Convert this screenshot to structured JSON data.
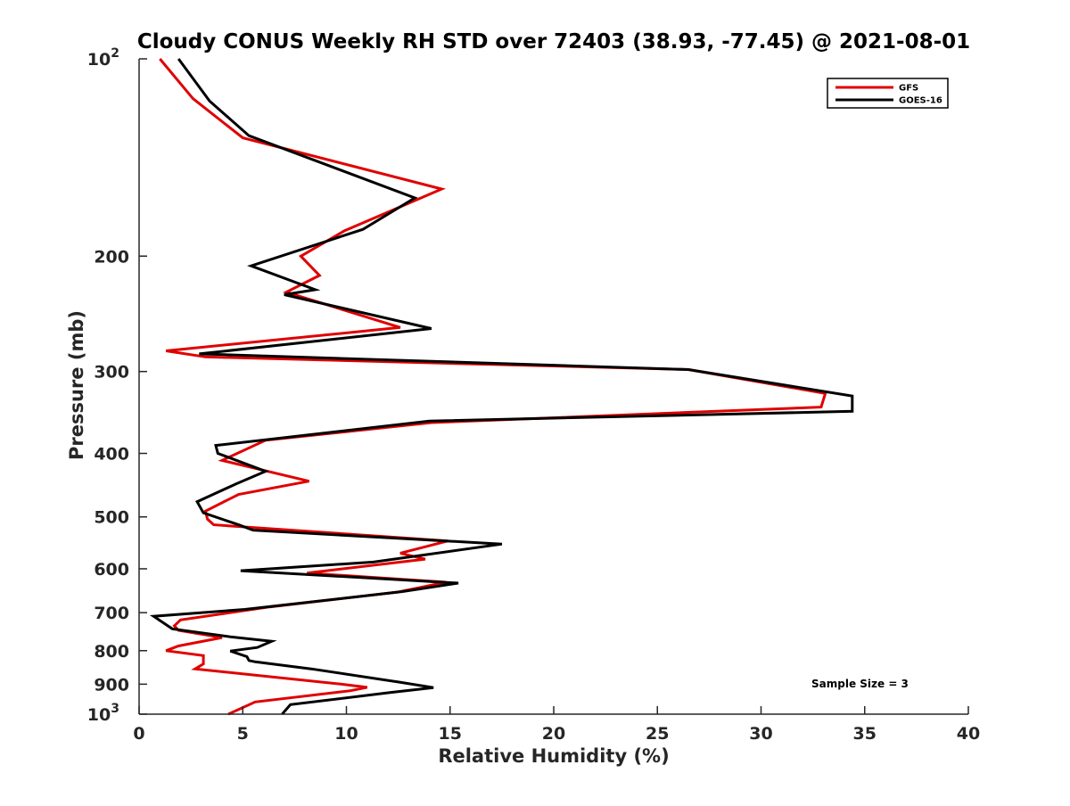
{
  "chart_data": {
    "type": "line",
    "title": "Cloudy CONUS Weekly RH STD over 72403 (38.93, -77.45) @ 2021-08-01",
    "xlabel": "Relative Humidity (%)",
    "ylabel": "Pressure (mb)",
    "xlim": [
      0,
      40
    ],
    "ylim": [
      100,
      1000
    ],
    "yscale": "log",
    "y_reversed": true,
    "grid": false,
    "x_ticks": [
      "0",
      "5",
      "10",
      "15",
      "20",
      "25",
      "30",
      "35",
      "40"
    ],
    "y_ticks": [
      {
        "value": 100,
        "base": "10",
        "exp": "2"
      },
      {
        "value": 200,
        "label": "200"
      },
      {
        "value": 300,
        "label": "300"
      },
      {
        "value": 400,
        "label": "400"
      },
      {
        "value": 500,
        "label": "500"
      },
      {
        "value": 600,
        "label": "600"
      },
      {
        "value": 700,
        "label": "700"
      },
      {
        "value": 800,
        "label": "800"
      },
      {
        "value": 900,
        "label": "900"
      },
      {
        "value": 1000,
        "base": "10",
        "exp": "3"
      }
    ],
    "legend_position": "top-right",
    "series": [
      {
        "name": "GFS",
        "color": "#e00000",
        "points": [
          [
            1.0,
            100
          ],
          [
            2.6,
            115
          ],
          [
            5.0,
            132
          ],
          [
            14.6,
            158
          ],
          [
            9.9,
            183
          ],
          [
            7.8,
            200
          ],
          [
            8.7,
            214
          ],
          [
            7.1,
            227
          ],
          [
            12.6,
            257
          ],
          [
            1.3,
            279
          ],
          [
            3.2,
            285
          ],
          [
            26.5,
            298
          ],
          [
            33.1,
            324
          ],
          [
            32.9,
            340
          ],
          [
            14.1,
            359
          ],
          [
            6.1,
            382
          ],
          [
            4.0,
            410
          ],
          [
            8.2,
            441
          ],
          [
            4.8,
            462
          ],
          [
            3.2,
            490
          ],
          [
            3.3,
            504
          ],
          [
            3.6,
            514
          ],
          [
            14.9,
            544
          ],
          [
            12.6,
            568
          ],
          [
            13.8,
            580
          ],
          [
            8.1,
            609
          ],
          [
            14.8,
            629
          ],
          [
            12.5,
            651
          ],
          [
            6.3,
            686
          ],
          [
            2.0,
            718
          ],
          [
            1.7,
            733
          ],
          [
            1.9,
            745
          ],
          [
            4.0,
            764
          ],
          [
            1.9,
            787
          ],
          [
            1.3,
            800
          ],
          [
            3.1,
            814
          ],
          [
            3.1,
            838
          ],
          [
            2.7,
            853
          ],
          [
            9.9,
            901
          ],
          [
            11.0,
            910
          ],
          [
            10.2,
            921
          ],
          [
            5.6,
            958
          ],
          [
            4.3,
            1000
          ]
        ]
      },
      {
        "name": "GOES-16",
        "color": "#000000",
        "points": [
          [
            1.9,
            100
          ],
          [
            3.4,
            116
          ],
          [
            5.3,
            131
          ],
          [
            13.3,
            163
          ],
          [
            10.8,
            182
          ],
          [
            5.4,
            207
          ],
          [
            8.5,
            225
          ],
          [
            7.0,
            229
          ],
          [
            14.1,
            258
          ],
          [
            2.9,
            282
          ],
          [
            26.5,
            298
          ],
          [
            34.4,
            327
          ],
          [
            34.4,
            345
          ],
          [
            14.0,
            357
          ],
          [
            3.7,
            389
          ],
          [
            3.8,
            400
          ],
          [
            6.1,
            426
          ],
          [
            4.7,
            445
          ],
          [
            2.8,
            474
          ],
          [
            3.1,
            493
          ],
          [
            4.8,
            514
          ],
          [
            5.5,
            524
          ],
          [
            17.5,
            550
          ],
          [
            11.3,
            586
          ],
          [
            4.9,
            604
          ],
          [
            15.4,
            631
          ],
          [
            12.7,
            650
          ],
          [
            5.1,
            692
          ],
          [
            0.7,
            709
          ],
          [
            1.6,
            741
          ],
          [
            4.4,
            762
          ],
          [
            6.4,
            774
          ],
          [
            5.7,
            791
          ],
          [
            4.4,
            801
          ],
          [
            5.2,
            817
          ],
          [
            5.3,
            828
          ],
          [
            5.6,
            832
          ],
          [
            8.3,
            853
          ],
          [
            12.5,
            893
          ],
          [
            14.2,
            911
          ],
          [
            12.1,
            927
          ],
          [
            7.3,
            967
          ],
          [
            6.9,
            1000
          ]
        ]
      }
    ],
    "annotations": [
      "Sample Size = 3"
    ]
  }
}
